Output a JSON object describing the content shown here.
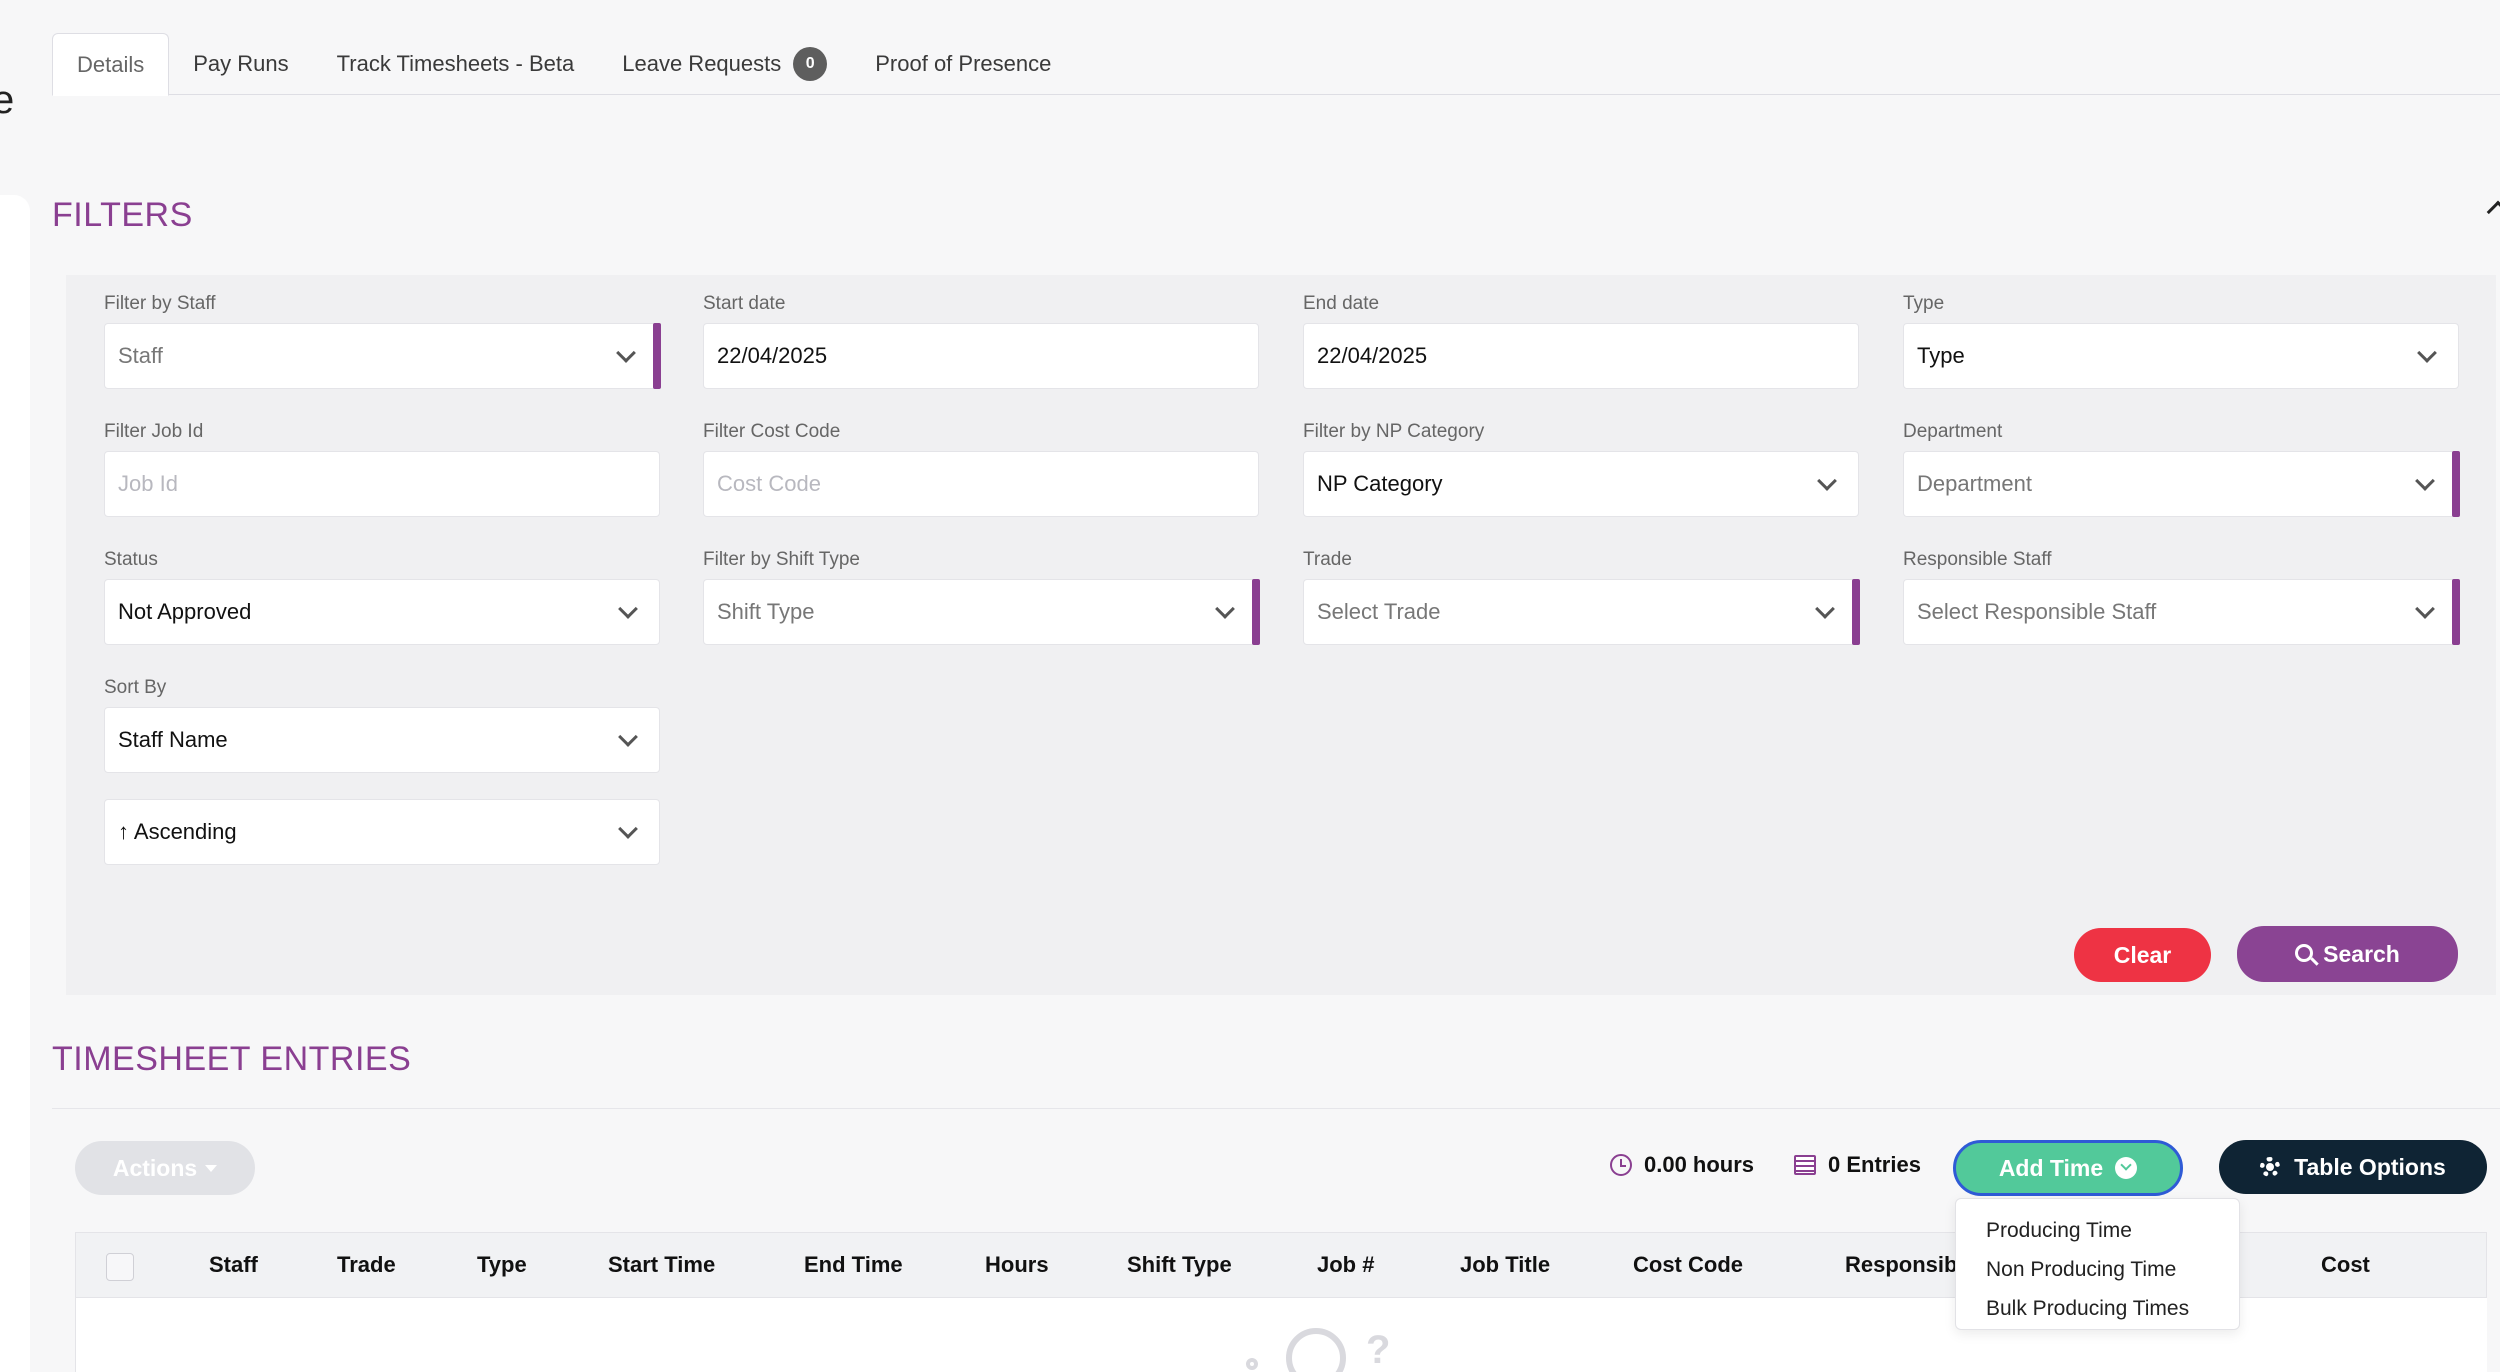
{
  "edge_glyph": "e",
  "tabs": [
    {
      "label": "Details"
    },
    {
      "label": "Pay Runs"
    },
    {
      "label": "Track Timesheets - Beta"
    },
    {
      "label": "Leave Requests",
      "badge": "0"
    },
    {
      "label": "Proof of Presence"
    }
  ],
  "filters": {
    "title": "FILTERS",
    "staff": {
      "label": "Filter by Staff",
      "value": "Staff"
    },
    "start_date": {
      "label": "Start date",
      "value": "22/04/2025"
    },
    "end_date": {
      "label": "End date",
      "value": "22/04/2025"
    },
    "type": {
      "label": "Type",
      "value": "Type"
    },
    "job_id": {
      "label": "Filter Job Id",
      "placeholder": "Job Id"
    },
    "cost_code": {
      "label": "Filter Cost Code",
      "placeholder": "Cost Code"
    },
    "np_category": {
      "label": "Filter by NP Category",
      "value": "NP Category"
    },
    "department": {
      "label": "Department",
      "value": "Department"
    },
    "status": {
      "label": "Status",
      "value": "Not Approved"
    },
    "shift_type": {
      "label": "Filter by Shift Type",
      "value": "Shift Type"
    },
    "trade": {
      "label": "Trade",
      "value": "Select Trade"
    },
    "responsible_staff": {
      "label": "Responsible Staff",
      "value": "Select Responsible Staff"
    },
    "sort_by": {
      "label": "Sort By",
      "value": "Staff Name"
    },
    "sort_order": {
      "value": "↑ Ascending"
    },
    "clear_label": "Clear",
    "search_label": "Search"
  },
  "entries": {
    "title": "TIMESHEET ENTRIES",
    "actions_label": "Actions",
    "hours": "0.00 hours",
    "entries_count": "0 Entries",
    "add_time_label": "Add Time",
    "table_options_label": "Table Options",
    "columns": [
      "Staff",
      "Trade",
      "Type",
      "Start Time",
      "End Time",
      "Hours",
      "Shift Type",
      "Job #",
      "Job Title",
      "Cost Code",
      "Responsib",
      "Cost"
    ],
    "add_time_menu": [
      "Producing Time",
      "Non Producing Time",
      "Bulk Producing Times"
    ]
  },
  "colors": {
    "accent": "#8a3f91",
    "clear": "#ee3344",
    "add_time": "#52c99a",
    "table_options": "#0f2434"
  }
}
